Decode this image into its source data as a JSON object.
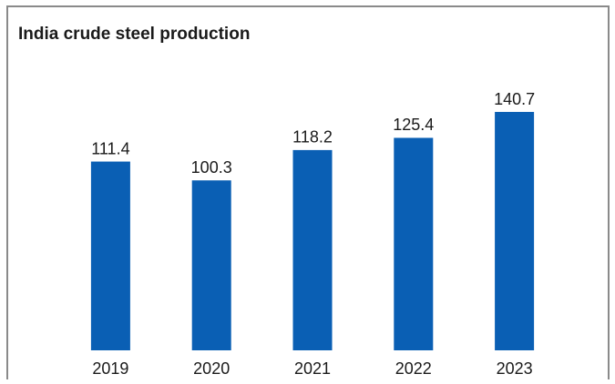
{
  "chart_data": {
    "type": "bar",
    "title": "India crude steel production",
    "categories": [
      "2019",
      "2020",
      "2021",
      "2022",
      "2023"
    ],
    "values": [
      111.4,
      100.3,
      118.2,
      125.4,
      140.7
    ],
    "color": "#0a5fb4"
  }
}
